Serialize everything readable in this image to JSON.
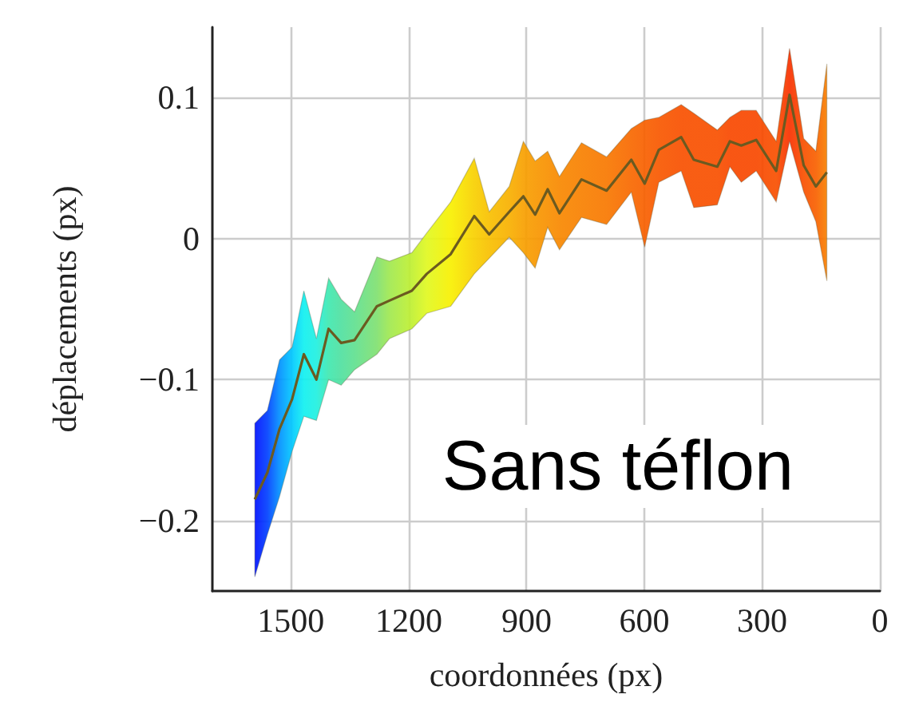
{
  "chart_data": {
    "type": "line",
    "xlabel": "coordonnées (px)",
    "ylabel": "déplacements (px)",
    "annotations": [
      "Sans téflon"
    ],
    "x": [
      1592,
      1560,
      1529,
      1497,
      1467,
      1435,
      1404,
      1372,
      1338,
      1281,
      1249,
      1192,
      1154,
      1093,
      1033,
      995,
      944,
      908,
      878,
      846,
      816,
      760,
      696,
      633,
      599,
      563,
      506,
      474,
      414,
      382,
      353,
      315,
      264,
      230,
      194,
      163,
      135
    ],
    "series": [
      {
        "values": [
          -0.185,
          -0.166,
          -0.135,
          -0.114,
          -0.082,
          -0.1,
          -0.064,
          -0.074,
          -0.072,
          -0.048,
          -0.044,
          -0.037,
          -0.025,
          -0.011,
          0.016,
          0.003,
          0.019,
          0.03,
          0.017,
          0.035,
          0.018,
          0.042,
          0.034,
          0.056,
          0.039,
          0.063,
          0.072,
          0.056,
          0.051,
          0.069,
          0.066,
          0.07,
          0.048,
          0.102,
          0.052,
          0.037,
          0.047
        ],
        "lower": [
          -0.24,
          -0.21,
          -0.183,
          -0.151,
          -0.126,
          -0.129,
          -0.1,
          -0.104,
          -0.093,
          -0.082,
          -0.071,
          -0.064,
          -0.053,
          -0.048,
          -0.025,
          -0.014,
          0.001,
          -0.01,
          -0.021,
          0.008,
          -0.008,
          0.015,
          0.01,
          0.033,
          -0.006,
          0.04,
          0.048,
          0.022,
          0.024,
          0.051,
          0.04,
          0.048,
          0.026,
          0.069,
          0.033,
          0.012,
          -0.03
        ],
        "upper": [
          -0.131,
          -0.122,
          -0.086,
          -0.077,
          -0.037,
          -0.071,
          -0.028,
          -0.043,
          -0.052,
          -0.013,
          -0.016,
          -0.01,
          0.004,
          0.026,
          0.057,
          0.019,
          0.037,
          0.069,
          0.055,
          0.062,
          0.044,
          0.068,
          0.058,
          0.078,
          0.084,
          0.086,
          0.095,
          0.089,
          0.077,
          0.086,
          0.091,
          0.091,
          0.069,
          0.135,
          0.071,
          0.062,
          0.124
        ],
        "colors": [
          "#0010ff",
          "#0040ff",
          "#0090ff",
          "#00c8ff",
          "#10f0f0",
          "#20f0e0",
          "#40e8b0",
          "#50e0a0",
          "#60e090",
          "#80e070",
          "#a0e850",
          "#c0f030",
          "#e0f820",
          "#f8f000",
          "#f8d000",
          "#f8c000",
          "#f8b000",
          "#f8a000",
          "#f89800",
          "#f89000",
          "#f88800",
          "#f88000",
          "#f87800",
          "#f86800",
          "#f86000",
          "#f85800",
          "#f85000",
          "#f85000",
          "#f85000",
          "#f84800",
          "#f84800",
          "#f84800",
          "#f85000",
          "#f83000",
          "#f85000",
          "#f86000",
          "#f88000"
        ]
      }
    ],
    "xlim": [
      1700,
      0
    ],
    "xticks": [
      1500,
      1200,
      900,
      600,
      300,
      0
    ],
    "ylim": [
      -0.25,
      0.15
    ],
    "yticks": [
      {
        "value": -0.2,
        "label": "−0.2"
      },
      {
        "value": -0.1,
        "label": "−0.1"
      },
      0,
      0.1
    ],
    "grid": true,
    "marker": "none",
    "line_style": "solid"
  }
}
